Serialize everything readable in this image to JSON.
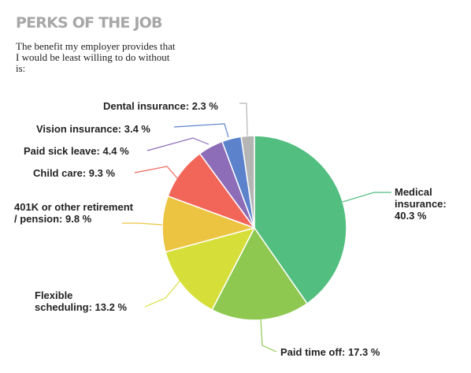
{
  "header": {
    "title": "PERKS OF THE JOB",
    "subtitle": "The benefit my employer provides that I would be least willing to do without is:"
  },
  "chart_data": {
    "type": "pie",
    "start": "12 o'clock",
    "direction": "clockwise",
    "unit": "%",
    "slices": [
      {
        "label": "Medical insurance",
        "value": 40.3,
        "color": "#52be80",
        "display_lines": [
          "Medical",
          "insurance:",
          "40.3 %"
        ]
      },
      {
        "label": "Paid time off",
        "value": 17.3,
        "color": "#8ec850",
        "display_lines": [
          "Paid time off: 17.3 %"
        ]
      },
      {
        "label": "Flexible scheduling",
        "value": 13.2,
        "color": "#d6df3a",
        "display_lines": [
          "Flexible",
          "scheduling: 13.2 %"
        ]
      },
      {
        "label": "401K or other retirement / pension",
        "value": 9.8,
        "color": "#ecc441",
        "display_lines": [
          "401K or other retirement",
          "/ pension: 9.8 %"
        ]
      },
      {
        "label": "Child care",
        "value": 9.3,
        "color": "#f2665a",
        "display_lines": [
          "Child care: 9.3 %"
        ]
      },
      {
        "label": "Paid sick leave",
        "value": 4.4,
        "color": "#8e6db8",
        "display_lines": [
          "Paid sick leave: 4.4 %"
        ]
      },
      {
        "label": "Vision insurance",
        "value": 3.4,
        "color": "#5b82cb",
        "display_lines": [
          "Vision insurance: 3.4 %"
        ]
      },
      {
        "label": "Dental insurance",
        "value": 2.3,
        "color": "#b5b5b5",
        "display_lines": [
          "Dental insurance: 2.3 %"
        ]
      }
    ]
  }
}
